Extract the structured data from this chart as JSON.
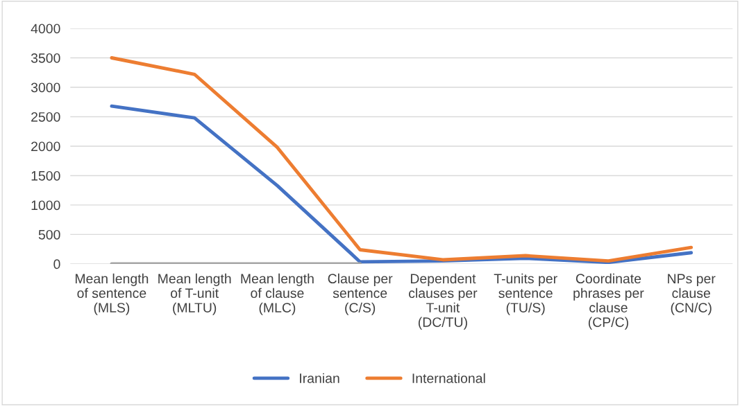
{
  "chart_data": {
    "type": "line",
    "categories": [
      "Mean length of sentence (MLS)",
      "Mean length of T-unit (MLTU)",
      "Mean length of clause (MLC)",
      "Clause per sentence (C/S)",
      "Dependent clauses per T-unit (DC/TU)",
      "T-units per sentence (TU/S)",
      "Coordinate phrases per clause (CP/C)",
      "NPs per clause (CN/C)"
    ],
    "series": [
      {
        "name": "Iranian",
        "color": "#4472c4",
        "values": [
          2680,
          2480,
          1330,
          35,
          50,
          95,
          25,
          190
        ]
      },
      {
        "name": "International",
        "color": "#ed7d31",
        "values": [
          3500,
          3220,
          1980,
          240,
          70,
          140,
          50,
          280
        ]
      },
      {
        "color": "#a5a5a5",
        "values": [
          0,
          0,
          0,
          0,
          null,
          null,
          null,
          null
        ]
      }
    ],
    "ylim": [
      0,
      4000
    ],
    "yticks": [
      0,
      500,
      1000,
      1500,
      2000,
      2500,
      3000,
      3500,
      4000
    ],
    "grid": "y",
    "legend": "bottom",
    "marker": "none",
    "line_style": "solid"
  }
}
